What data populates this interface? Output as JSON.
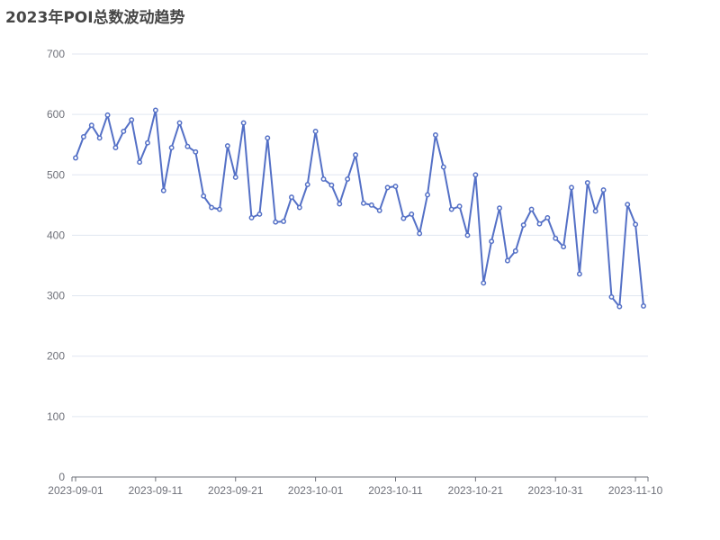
{
  "chart_data": {
    "type": "line",
    "title": "2023年POI总数波动趋势",
    "xlabel": "",
    "ylabel": "",
    "ylim": [
      0,
      700
    ],
    "yticks": [
      0,
      100,
      200,
      300,
      400,
      500,
      600,
      700
    ],
    "xticks": [
      "2023-09-01",
      "2023-09-11",
      "2023-09-21",
      "2023-10-01",
      "2023-10-11",
      "2023-10-21",
      "2023-10-31",
      "2023-11-10"
    ],
    "grid": true,
    "line_color": "#5470c6",
    "x": [
      "2023-09-01",
      "2023-09-02",
      "2023-09-03",
      "2023-09-04",
      "2023-09-05",
      "2023-09-06",
      "2023-09-07",
      "2023-09-08",
      "2023-09-09",
      "2023-09-10",
      "2023-09-11",
      "2023-09-12",
      "2023-09-13",
      "2023-09-14",
      "2023-09-15",
      "2023-09-16",
      "2023-09-17",
      "2023-09-18",
      "2023-09-19",
      "2023-09-20",
      "2023-09-21",
      "2023-09-22",
      "2023-09-23",
      "2023-09-24",
      "2023-09-25",
      "2023-09-26",
      "2023-09-27",
      "2023-09-28",
      "2023-09-29",
      "2023-09-30",
      "2023-10-01",
      "2023-10-02",
      "2023-10-03",
      "2023-10-04",
      "2023-10-05",
      "2023-10-06",
      "2023-10-07",
      "2023-10-08",
      "2023-10-09",
      "2023-10-10",
      "2023-10-11",
      "2023-10-12",
      "2023-10-13",
      "2023-10-14",
      "2023-10-15",
      "2023-10-16",
      "2023-10-17",
      "2023-10-18",
      "2023-10-19",
      "2023-10-20",
      "2023-10-21",
      "2023-10-22",
      "2023-10-23",
      "2023-10-24",
      "2023-10-25",
      "2023-10-26",
      "2023-10-27",
      "2023-10-28",
      "2023-10-29",
      "2023-10-30",
      "2023-10-31",
      "2023-11-01",
      "2023-11-02",
      "2023-11-03",
      "2023-11-04",
      "2023-11-05",
      "2023-11-06",
      "2023-11-07",
      "2023-11-08",
      "2023-11-09",
      "2023-11-10",
      "2023-11-11"
    ],
    "values": [
      528,
      563,
      582,
      561,
      599,
      545,
      572,
      591,
      521,
      553,
      607,
      474,
      545,
      586,
      547,
      538,
      465,
      446,
      443,
      548,
      496,
      586,
      429,
      435,
      561,
      422,
      423,
      463,
      446,
      484,
      572,
      493,
      483,
      452,
      493,
      533,
      453,
      450,
      441,
      479,
      481,
      428,
      435,
      403,
      467,
      566,
      513,
      443,
      448,
      400,
      500,
      321,
      390,
      445,
      358,
      374,
      417,
      443,
      419,
      429,
      395,
      381,
      479,
      336,
      487,
      440,
      475,
      298,
      282,
      451,
      418,
      283
    ]
  }
}
